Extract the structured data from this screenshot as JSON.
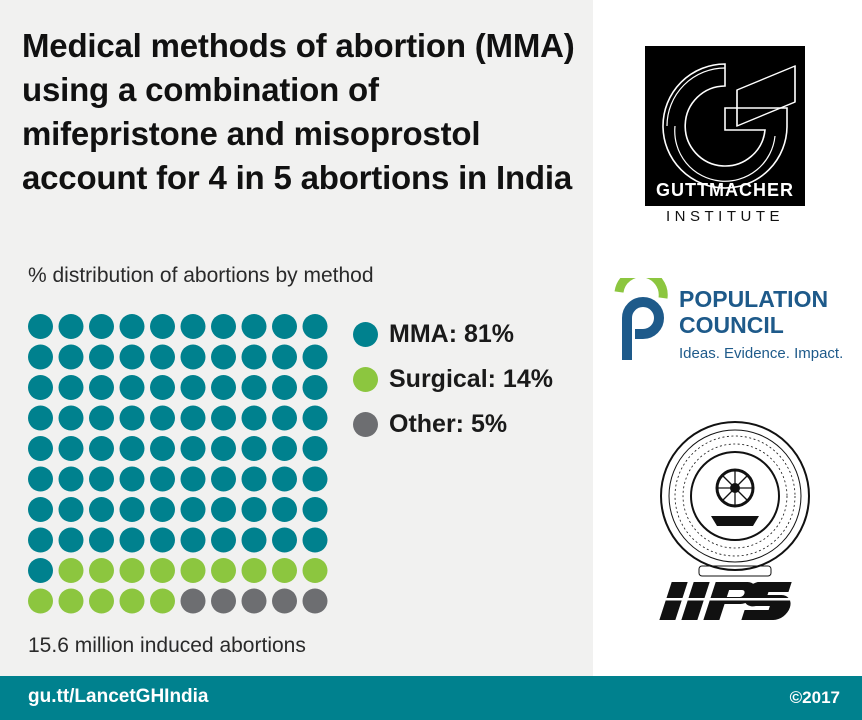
{
  "title": "Medical methods of abortion (MMA) using a combination of mifepristone and misoprostol account for 4 in 5 abortions in India",
  "chart_data": {
    "type": "waffle",
    "title": "",
    "subtitle": "% distribution of abortions by method",
    "grid": {
      "rows": 10,
      "cols": 10
    },
    "categories": [
      "MMA",
      "Surgical",
      "Other"
    ],
    "values": [
      81,
      14,
      5
    ],
    "unit": "%",
    "colors": [
      "#00818e",
      "#8cc63f",
      "#6d6e71"
    ],
    "legend": [
      {
        "label": "MMA: 81%"
      },
      {
        "label": "Surgical: 14%"
      },
      {
        "label": "Other: 5%"
      }
    ],
    "legend_placement": "right",
    "footnote": "15.6 million induced abortions"
  },
  "footer": {
    "link": "gu.tt/LancetGHIndia",
    "copyright": "©2017"
  },
  "logos": {
    "guttmacher": {
      "name": "GUTTMACHER",
      "subtitle": "INSTITUTE"
    },
    "population_council": {
      "name_line1": "POPULATION",
      "name_line2": "COUNCIL",
      "tagline": "Ideas. Evidence. Impact."
    },
    "iips": {
      "wordmark": "IIPS"
    }
  }
}
